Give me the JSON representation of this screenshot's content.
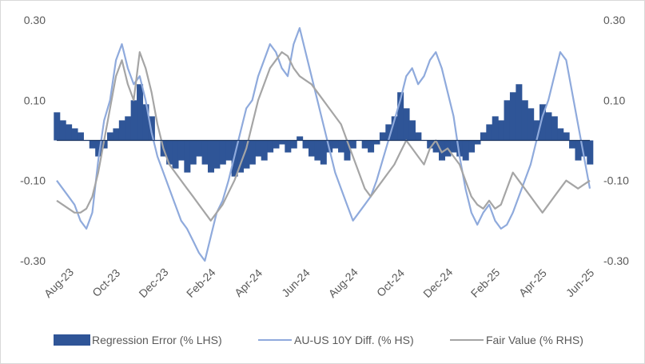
{
  "chart_data": {
    "type": "area",
    "title": "",
    "xlabel": "",
    "ylabel_left": "",
    "ylabel_right": "",
    "ylim_left": [
      -0.3,
      0.3
    ],
    "ylim_right": [
      -0.3,
      0.3
    ],
    "yticks_left": [
      "0.30",
      "0.10",
      "-0.10",
      "-0.30"
    ],
    "yticks_right": [
      "0.30",
      "0.10",
      "-0.10",
      "-0.30"
    ],
    "ytick_values": [
      0.3,
      0.1,
      -0.1,
      -0.3
    ],
    "grid": false,
    "legend_position": "bottom",
    "x_ticks": [
      "Aug-23",
      "Oct-23",
      "Dec-23",
      "Feb-24",
      "Apr-24",
      "Jun-24",
      "Aug-24",
      "Oct-24",
      "Dec-24",
      "Feb-25",
      "Apr-25",
      "Jun-25"
    ],
    "x_tick_index": [
      0,
      2,
      4,
      6,
      8,
      10,
      12,
      14,
      16,
      18,
      20,
      22
    ],
    "x_months": 22.5,
    "series": [
      {
        "name": "Regression Error (% LHS)",
        "kind": "area",
        "color": "#2f5597",
        "x": [
          0,
          0.25,
          0.5,
          0.75,
          1,
          1.25,
          1.5,
          1.75,
          2,
          2.25,
          2.5,
          2.75,
          3,
          3.25,
          3.5,
          3.75,
          4,
          4.25,
          4.5,
          4.75,
          5,
          5.25,
          5.5,
          5.75,
          6,
          6.25,
          6.5,
          6.75,
          7,
          7.25,
          7.5,
          7.75,
          8,
          8.25,
          8.5,
          8.75,
          9,
          9.25,
          9.5,
          9.75,
          10,
          10.25,
          10.5,
          10.75,
          11,
          11.25,
          11.5,
          11.75,
          12,
          12.25,
          12.5,
          12.75,
          13,
          13.25,
          13.5,
          13.75,
          14,
          14.25,
          14.5,
          14.75,
          15,
          15.25,
          15.5,
          15.75,
          16,
          16.25,
          16.5,
          16.75,
          17,
          17.25,
          17.5,
          17.75,
          18,
          18.25,
          18.5,
          18.75,
          19,
          19.25,
          19.5,
          19.75,
          20,
          20.25,
          20.5,
          20.75,
          21,
          21.25,
          21.5,
          21.75,
          22,
          22.25,
          22.5
        ],
        "values": [
          0.07,
          0.05,
          0.04,
          0.03,
          0.02,
          0.0,
          -0.02,
          -0.04,
          -0.02,
          0.02,
          0.03,
          0.05,
          0.06,
          0.1,
          0.14,
          0.09,
          0.06,
          0.0,
          -0.04,
          -0.06,
          -0.07,
          -0.05,
          -0.08,
          -0.06,
          -0.04,
          -0.06,
          -0.08,
          -0.07,
          -0.06,
          -0.05,
          -0.09,
          -0.08,
          -0.07,
          -0.06,
          -0.04,
          -0.05,
          -0.03,
          -0.02,
          -0.01,
          -0.03,
          -0.02,
          0.01,
          -0.02,
          -0.04,
          -0.05,
          -0.06,
          -0.03,
          -0.02,
          -0.03,
          -0.05,
          -0.02,
          0.0,
          -0.02,
          -0.03,
          -0.01,
          0.02,
          0.04,
          0.06,
          0.12,
          0.08,
          0.05,
          0.02,
          0.0,
          -0.02,
          -0.03,
          -0.05,
          -0.04,
          -0.03,
          -0.04,
          -0.05,
          -0.03,
          -0.01,
          0.02,
          0.04,
          0.06,
          0.05,
          0.1,
          0.12,
          0.14,
          0.1,
          0.08,
          0.05,
          0.09,
          0.07,
          0.06,
          0.03,
          0.02,
          -0.02,
          -0.05,
          -0.04,
          -0.06
        ],
        "tooltip": ""
      },
      {
        "name": "AU-US 10Y Diff. (% HS)",
        "kind": "line",
        "color": "#8faadc",
        "x": [
          0,
          0.25,
          0.5,
          0.75,
          1,
          1.25,
          1.5,
          1.75,
          2,
          2.25,
          2.5,
          2.75,
          3,
          3.25,
          3.5,
          3.75,
          4,
          4.25,
          4.5,
          4.75,
          5,
          5.25,
          5.5,
          5.75,
          6,
          6.25,
          6.5,
          6.75,
          7,
          7.25,
          7.5,
          7.75,
          8,
          8.25,
          8.5,
          8.75,
          9,
          9.25,
          9.5,
          9.75,
          10,
          10.25,
          10.5,
          10.75,
          11,
          11.25,
          11.5,
          11.75,
          12,
          12.25,
          12.5,
          12.75,
          13,
          13.25,
          13.5,
          13.75,
          14,
          14.25,
          14.5,
          14.75,
          15,
          15.25,
          15.5,
          15.75,
          16,
          16.25,
          16.5,
          16.75,
          17,
          17.25,
          17.5,
          17.75,
          18,
          18.25,
          18.5,
          18.75,
          19,
          19.25,
          19.5,
          19.75,
          20,
          20.25,
          20.5,
          20.75,
          21,
          21.25,
          21.5,
          21.75,
          22,
          22.25,
          22.5
        ],
        "values": [
          -0.1,
          -0.12,
          -0.14,
          -0.16,
          -0.2,
          -0.22,
          -0.18,
          -0.05,
          0.05,
          0.1,
          0.2,
          0.24,
          0.18,
          0.14,
          0.16,
          0.1,
          0.02,
          -0.04,
          -0.08,
          -0.12,
          -0.16,
          -0.2,
          -0.22,
          -0.25,
          -0.28,
          -0.3,
          -0.24,
          -0.18,
          -0.15,
          -0.1,
          -0.04,
          0.02,
          0.08,
          0.1,
          0.16,
          0.2,
          0.24,
          0.22,
          0.18,
          0.16,
          0.24,
          0.28,
          0.22,
          0.16,
          0.1,
          0.04,
          -0.02,
          -0.08,
          -0.12,
          -0.16,
          -0.2,
          -0.18,
          -0.16,
          -0.14,
          -0.1,
          -0.05,
          0.0,
          0.05,
          0.1,
          0.16,
          0.18,
          0.14,
          0.16,
          0.2,
          0.22,
          0.18,
          0.12,
          0.06,
          -0.04,
          -0.12,
          -0.18,
          -0.21,
          -0.18,
          -0.16,
          -0.2,
          -0.22,
          -0.21,
          -0.18,
          -0.14,
          -0.1,
          -0.06,
          0.0,
          0.06,
          0.1,
          0.16,
          0.22,
          0.2,
          0.12,
          0.04,
          -0.04,
          -0.12
        ],
        "tooltip": ""
      },
      {
        "name": "Fair Value (% RHS)",
        "kind": "line",
        "color": "#a5a5a5",
        "x": [
          0,
          0.25,
          0.5,
          0.75,
          1,
          1.25,
          1.5,
          1.75,
          2,
          2.25,
          2.5,
          2.75,
          3,
          3.25,
          3.5,
          3.75,
          4,
          4.25,
          4.5,
          4.75,
          5,
          5.25,
          5.5,
          5.75,
          6,
          6.25,
          6.5,
          6.75,
          7,
          7.25,
          7.5,
          7.75,
          8,
          8.25,
          8.5,
          8.75,
          9,
          9.25,
          9.5,
          9.75,
          10,
          10.25,
          10.5,
          10.75,
          11,
          11.25,
          11.5,
          11.75,
          12,
          12.25,
          12.5,
          12.75,
          13,
          13.25,
          13.5,
          13.75,
          14,
          14.25,
          14.5,
          14.75,
          15,
          15.25,
          15.5,
          15.75,
          16,
          16.25,
          16.5,
          16.75,
          17,
          17.25,
          17.5,
          17.75,
          18,
          18.25,
          18.5,
          18.75,
          19,
          19.25,
          19.5,
          19.75,
          20,
          20.25,
          20.5,
          20.75,
          21,
          21.25,
          21.5,
          21.75,
          22,
          22.25,
          22.5
        ],
        "values": [
          -0.15,
          -0.16,
          -0.17,
          -0.18,
          -0.18,
          -0.17,
          -0.14,
          -0.08,
          0.0,
          0.08,
          0.16,
          0.2,
          0.14,
          0.1,
          0.22,
          0.18,
          0.12,
          0.04,
          -0.02,
          -0.06,
          -0.08,
          -0.1,
          -0.12,
          -0.14,
          -0.16,
          -0.18,
          -0.2,
          -0.18,
          -0.16,
          -0.13,
          -0.1,
          -0.06,
          -0.02,
          0.04,
          0.1,
          0.14,
          0.18,
          0.2,
          0.22,
          0.21,
          0.18,
          0.16,
          0.15,
          0.14,
          0.12,
          0.1,
          0.08,
          0.06,
          0.04,
          0.0,
          -0.04,
          -0.08,
          -0.12,
          -0.14,
          -0.12,
          -0.1,
          -0.08,
          -0.06,
          -0.03,
          0.0,
          -0.02,
          -0.04,
          -0.06,
          -0.02,
          0.0,
          -0.03,
          -0.02,
          -0.04,
          -0.06,
          -0.1,
          -0.14,
          -0.16,
          -0.17,
          -0.15,
          -0.17,
          -0.16,
          -0.12,
          -0.08,
          -0.1,
          -0.12,
          -0.14,
          -0.16,
          -0.18,
          -0.16,
          -0.14,
          -0.12,
          -0.1,
          -0.11,
          -0.12,
          -0.11,
          -0.1
        ],
        "tooltip": ""
      }
    ]
  },
  "legend": {
    "items": [
      {
        "label": "Regression Error (% LHS)",
        "color": "#2f5597",
        "symbol": "box"
      },
      {
        "label": "AU-US 10Y Diff. (% HS)",
        "color": "#8faadc",
        "symbol": "line"
      },
      {
        "label": "Fair Value (% RHS)",
        "color": "#a5a5a5",
        "symbol": "line"
      }
    ]
  }
}
